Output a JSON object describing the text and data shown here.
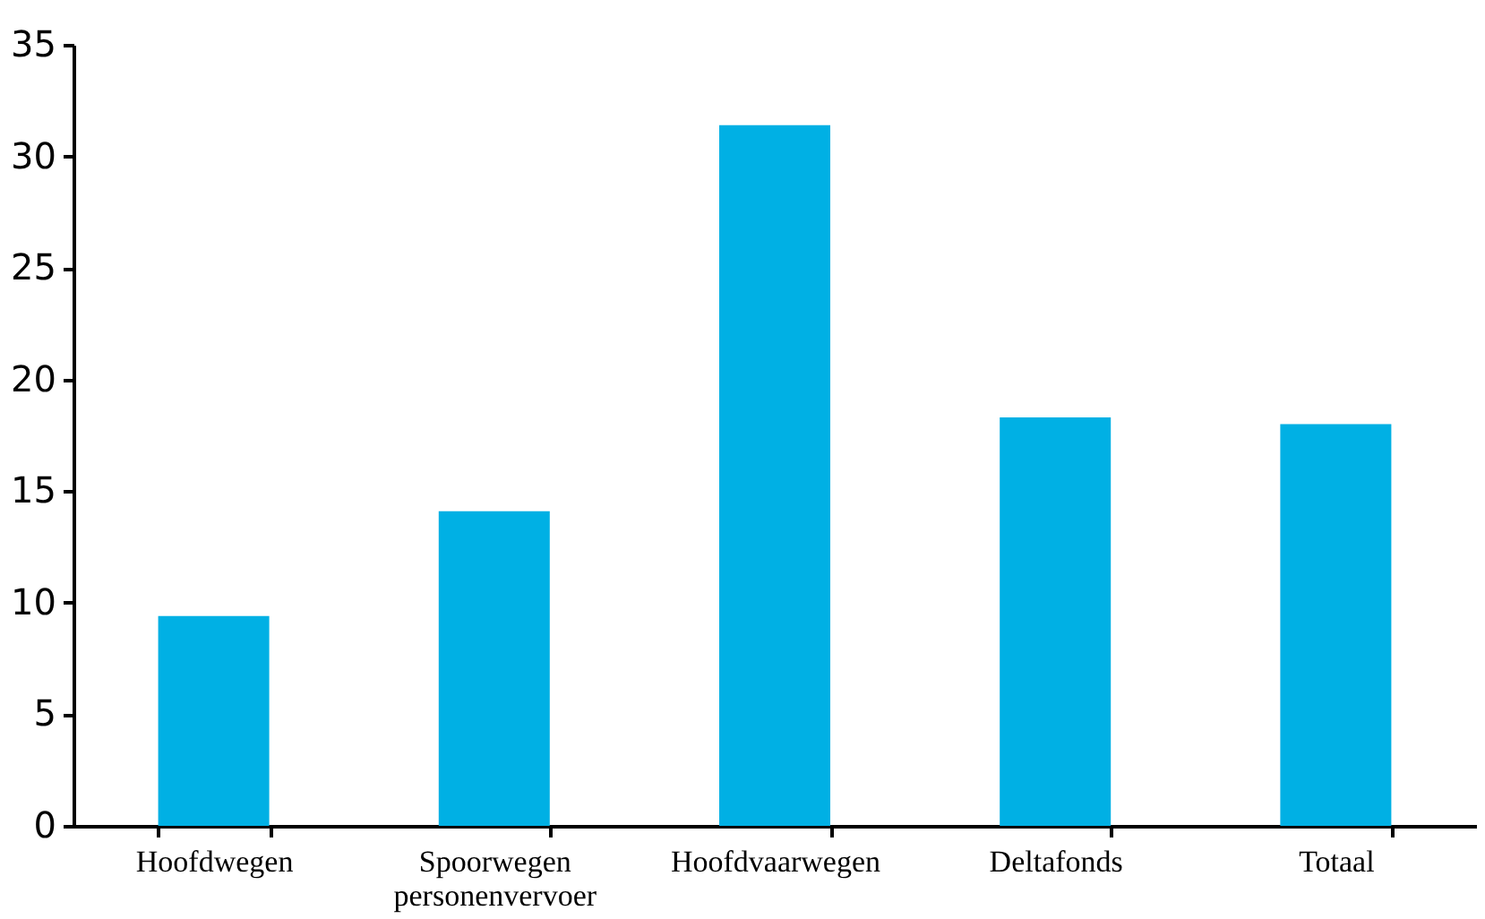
{
  "chart_data": {
    "type": "bar",
    "categories": [
      "Hoofdwegen",
      "Spoorwegen personenvervoer",
      "Hoofdvaarwegen",
      "Deltafonds",
      "Totaal"
    ],
    "values": [
      9.4,
      14.1,
      31.4,
      18.3,
      18.0
    ],
    "color": "#00b0e4",
    "ylim": [
      0,
      35
    ],
    "yticks": [
      0,
      5,
      10,
      15,
      20,
      25,
      30,
      35
    ],
    "grid": false
  }
}
